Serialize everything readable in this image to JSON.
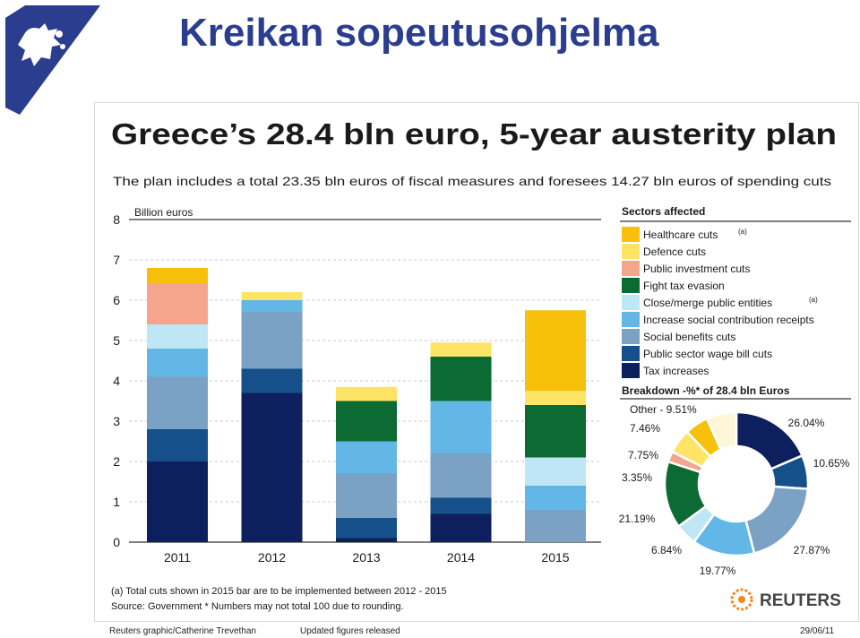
{
  "slide": {
    "title": "Kreikan sopeutusohjelma"
  },
  "footer": {
    "credit": "Reuters graphic/Catherine Trevethan",
    "note": "Updated figures released",
    "date": "29/06/11"
  },
  "brand": {
    "title_color": "#2b3d8f",
    "logo_color": "#2b3d8f",
    "reuters_label": "REUTERS"
  },
  "chart_data": {
    "type": "bar",
    "title": "Greece’s 28.4 bln euro, 5-year austerity plan",
    "subtitle": "The plan includes a total 23.35 bln euros of fiscal measures and foresees 14.27 bln euros of spending cuts",
    "ylabel": "Billion euros",
    "xlabel": "",
    "ylim": [
      0,
      8
    ],
    "yticks": [
      0,
      1,
      2,
      3,
      4,
      5,
      6,
      7,
      8
    ],
    "grid": true,
    "categories": [
      "2011",
      "2012",
      "2013",
      "2014",
      "2015"
    ],
    "legend_title": "Sectors affected",
    "legend_placement": "right",
    "series": [
      {
        "name": "Tax increases",
        "color": "#0d1f5c",
        "values": [
          2.0,
          3.7,
          0.1,
          0.7,
          0.0
        ]
      },
      {
        "name": "Public sector wage bill cuts",
        "color": "#16508a",
        "values": [
          0.8,
          0.6,
          0.5,
          0.4,
          0.0
        ]
      },
      {
        "name": "Social benefits cuts",
        "color": "#7ba2c4",
        "values": [
          1.3,
          1.4,
          1.1,
          1.1,
          0.8
        ]
      },
      {
        "name": "Increase social contribution receipts",
        "color": "#63b7e6",
        "values": [
          0.7,
          0.3,
          0.8,
          1.3,
          0.6
        ]
      },
      {
        "name": "Close/merge public entities",
        "color": "#bfe6f5",
        "values": [
          0.6,
          0.0,
          0.0,
          0.0,
          0.7
        ]
      },
      {
        "name": "Fight tax evasion",
        "color": "#0b6b33",
        "values": [
          0.0,
          0.0,
          1.0,
          1.1,
          1.3
        ]
      },
      {
        "name": "Public investment cuts",
        "color": "#f5a58c",
        "values": [
          1.0,
          0.0,
          0.0,
          0.0,
          0.0
        ]
      },
      {
        "name": "Defence cuts",
        "color": "#fde465",
        "values": [
          0.0,
          0.2,
          0.35,
          0.35,
          0.35
        ]
      },
      {
        "name": "Healthcare cuts",
        "color": "#f7c10b",
        "values": [
          0.4,
          0.0,
          0.0,
          0.0,
          2.0
        ]
      }
    ],
    "legend_notes": {
      "Healthcare cuts": "(a)",
      "Close/merge public entities": "(a)"
    },
    "donut": {
      "title": "Breakdown -%* of 28.4 bln Euros",
      "slices": [
        {
          "label": "26.04%",
          "value": 26.04,
          "color": "#0d1f5c"
        },
        {
          "label": "10.65%",
          "value": 10.65,
          "color": "#16508a"
        },
        {
          "label": "27.87%",
          "value": 27.87,
          "color": "#7ba2c4"
        },
        {
          "label": "19.77%",
          "value": 19.77,
          "color": "#63b7e6"
        },
        {
          "label": "6.84%",
          "value": 6.84,
          "color": "#bfe6f5"
        },
        {
          "label": "21.19%",
          "value": 21.19,
          "color": "#0b6b33"
        },
        {
          "label": "3.35%",
          "value": 3.35,
          "color": "#f5a58c"
        },
        {
          "label": "7.75%",
          "value": 7.75,
          "color": "#fde465"
        },
        {
          "label": "7.46%",
          "value": 7.46,
          "color": "#f7c10b"
        },
        {
          "label": "Other - 9.51%",
          "value": 9.51,
          "color": "#fdf6d8"
        }
      ]
    },
    "notes": [
      "(a) Total cuts shown in 2015 bar are to be implemented between 2012 - 2015",
      "Source: Government   * Numbers may not total 100 due to rounding."
    ]
  }
}
